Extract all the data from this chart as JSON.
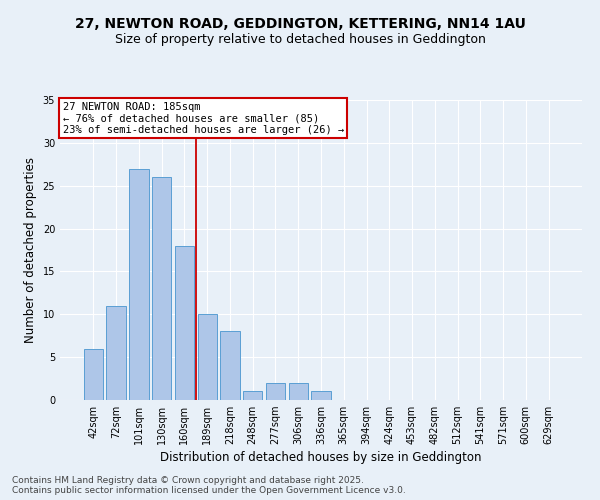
{
  "title_line1": "27, NEWTON ROAD, GEDDINGTON, KETTERING, NN14 1AU",
  "title_line2": "Size of property relative to detached houses in Geddington",
  "xlabel": "Distribution of detached houses by size in Geddington",
  "ylabel": "Number of detached properties",
  "categories": [
    "42sqm",
    "72sqm",
    "101sqm",
    "130sqm",
    "160sqm",
    "189sqm",
    "218sqm",
    "248sqm",
    "277sqm",
    "306sqm",
    "336sqm",
    "365sqm",
    "394sqm",
    "424sqm",
    "453sqm",
    "482sqm",
    "512sqm",
    "541sqm",
    "571sqm",
    "600sqm",
    "629sqm"
  ],
  "values": [
    6,
    11,
    27,
    26,
    18,
    10,
    8,
    1,
    2,
    2,
    1,
    0,
    0,
    0,
    0,
    0,
    0,
    0,
    0,
    0,
    0
  ],
  "bar_color": "#aec6e8",
  "bar_edge_color": "#5a9fd4",
  "ref_line_x": 4.5,
  "annotation_line1": "27 NEWTON ROAD: 185sqm",
  "annotation_line2": "← 76% of detached houses are smaller (85)",
  "annotation_line3": "23% of semi-detached houses are larger (26) →",
  "annotation_box_color": "#ffffff",
  "annotation_box_edge_color": "#cc0000",
  "ref_line_color": "#cc0000",
  "ylim": [
    0,
    35
  ],
  "yticks": [
    0,
    5,
    10,
    15,
    20,
    25,
    30,
    35
  ],
  "footer_line1": "Contains HM Land Registry data © Crown copyright and database right 2025.",
  "footer_line2": "Contains public sector information licensed under the Open Government Licence v3.0.",
  "bg_color": "#e8f0f8",
  "grid_color": "#ffffff",
  "title_fontsize": 10,
  "subtitle_fontsize": 9,
  "axis_label_fontsize": 8.5,
  "tick_fontsize": 7,
  "annot_fontsize": 7.5,
  "footer_fontsize": 6.5
}
